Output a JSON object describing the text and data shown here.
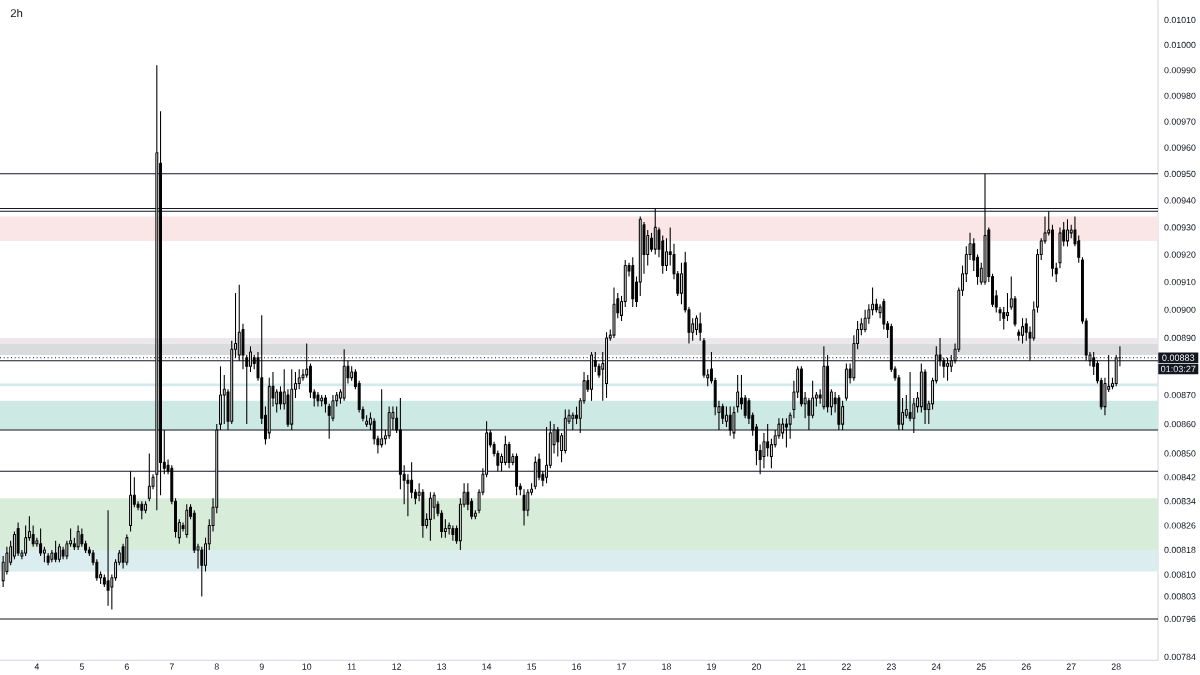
{
  "chart_data": {
    "type": "candlestick",
    "title": "2h",
    "log": true,
    "color": "#000000",
    "xlim": [
      3.18,
      28.93
    ],
    "ylim": [
      0.00783,
      0.01018
    ],
    "xticks": [
      4,
      5,
      6,
      7,
      8,
      9,
      10,
      11,
      12,
      13,
      14,
      15,
      16,
      17,
      18,
      19,
      20,
      21,
      22,
      23,
      24,
      25,
      26,
      27,
      28
    ],
    "yticks": [
      {
        "value": 0.0101,
        "label": "0.01010"
      },
      {
        "value": 0.01,
        "label": "0.01000"
      },
      {
        "value": 0.0099,
        "label": "0.00990"
      },
      {
        "value": 0.0098,
        "label": "0.00980"
      },
      {
        "value": 0.0097,
        "label": "0.00970"
      },
      {
        "value": 0.0096,
        "label": "0.00960"
      },
      {
        "value": 0.0095,
        "label": "0.00950"
      },
      {
        "value": 0.0094,
        "label": "0.00940"
      },
      {
        "value": 0.0093,
        "label": "0.00930"
      },
      {
        "value": 0.0092,
        "label": "0.00920"
      },
      {
        "value": 0.0091,
        "label": "0.00910"
      },
      {
        "value": 0.009,
        "label": "0.00900"
      },
      {
        "value": 0.0089,
        "label": "0.00890"
      },
      {
        "value": 0.0087,
        "label": "0.00870"
      },
      {
        "value": 0.0086,
        "label": "0.00860"
      },
      {
        "value": 0.0085,
        "label": "0.00850"
      },
      {
        "value": 0.00842,
        "label": "0.00842"
      },
      {
        "value": 0.00834,
        "label": "0.00834"
      },
      {
        "value": 0.00826,
        "label": "0.00826"
      },
      {
        "value": 0.00818,
        "label": "0.00818"
      },
      {
        "value": 0.0081,
        "label": "0.00810"
      },
      {
        "value": 0.00803,
        "label": "0.00803"
      },
      {
        "value": 0.00796,
        "label": "0.00796"
      },
      {
        "value": 0.00784,
        "label": "0.00784"
      }
    ],
    "x": [
      3.25,
      3.333,
      3.417,
      3.5,
      3.583,
      3.667,
      3.75,
      3.833,
      3.917,
      4,
      4.083,
      4.167,
      4.25,
      4.333,
      4.417,
      4.5,
      4.583,
      4.667,
      4.75,
      4.833,
      4.917,
      5,
      5.083,
      5.167,
      5.25,
      5.333,
      5.417,
      5.5,
      5.583,
      5.667,
      5.75,
      5.833,
      5.917,
      6,
      6.083,
      6.167,
      6.25,
      6.333,
      6.417,
      6.5,
      6.583,
      6.667,
      6.75,
      6.833,
      6.917,
      7,
      7.083,
      7.167,
      7.25,
      7.333,
      7.417,
      7.5,
      7.583,
      7.667,
      7.75,
      7.833,
      7.917,
      8,
      8.083,
      8.167,
      8.25,
      8.333,
      8.417,
      8.5,
      8.583,
      8.667,
      8.75,
      8.833,
      8.917,
      9,
      9.083,
      9.167,
      9.25,
      9.333,
      9.417,
      9.5,
      9.583,
      9.667,
      9.75,
      9.833,
      9.917,
      10,
      10.083,
      10.167,
      10.25,
      10.333,
      10.417,
      10.5,
      10.583,
      10.667,
      10.75,
      10.833,
      10.917,
      11,
      11.083,
      11.167,
      11.25,
      11.333,
      11.417,
      11.5,
      11.583,
      11.667,
      11.75,
      11.833,
      11.917,
      12,
      12.083,
      12.167,
      12.25,
      12.333,
      12.417,
      12.5,
      12.583,
      12.667,
      12.75,
      12.833,
      12.917,
      13,
      13.083,
      13.167,
      13.25,
      13.333,
      13.417,
      13.5,
      13.583,
      13.667,
      13.75,
      13.833,
      13.917,
      14,
      14.083,
      14.167,
      14.25,
      14.333,
      14.417,
      14.5,
      14.583,
      14.667,
      14.75,
      14.833,
      14.917,
      15,
      15.083,
      15.167,
      15.25,
      15.333,
      15.417,
      15.5,
      15.583,
      15.667,
      15.75,
      15.833,
      15.917,
      16,
      16.083,
      16.167,
      16.25,
      16.333,
      16.417,
      16.5,
      16.583,
      16.667,
      16.75,
      16.833,
      16.917,
      17,
      17.083,
      17.167,
      17.25,
      17.333,
      17.417,
      17.5,
      17.583,
      17.667,
      17.75,
      17.833,
      17.917,
      18,
      18.083,
      18.167,
      18.25,
      18.333,
      18.417,
      18.5,
      18.583,
      18.667,
      18.75,
      18.833,
      18.917,
      19,
      19.083,
      19.167,
      19.25,
      19.333,
      19.417,
      19.5,
      19.583,
      19.667,
      19.75,
      19.833,
      19.917,
      20,
      20.083,
      20.167,
      20.25,
      20.333,
      20.417,
      20.5,
      20.583,
      20.667,
      20.75,
      20.833,
      20.917,
      21,
      21.083,
      21.167,
      21.25,
      21.333,
      21.417,
      21.5,
      21.583,
      21.667,
      21.75,
      21.833,
      21.917,
      22,
      22.083,
      22.167,
      22.25,
      22.333,
      22.417,
      22.5,
      22.583,
      22.667,
      22.75,
      22.833,
      22.917,
      23,
      23.083,
      23.167,
      23.25,
      23.333,
      23.417,
      23.5,
      23.583,
      23.667,
      23.75,
      23.833,
      23.917,
      24,
      24.083,
      24.167,
      24.25,
      24.333,
      24.417,
      24.5,
      24.583,
      24.667,
      24.75,
      24.833,
      24.917,
      25,
      25.083,
      25.167,
      25.25,
      25.333,
      25.417,
      25.5,
      25.583,
      25.667,
      25.75,
      25.833,
      25.917,
      26,
      26.083,
      26.167,
      26.25,
      26.333,
      26.417,
      26.5,
      26.583,
      26.667,
      26.75,
      26.833,
      26.917,
      27,
      27.083,
      27.167,
      27.25,
      27.333,
      27.417,
      27.5,
      27.583,
      27.667,
      27.75,
      27.833,
      27.917,
      28,
      28.083
    ],
    "ohlc": [
      [
        0.00808,
        0.00816,
        0.00806,
        0.00814
      ],
      [
        0.00811,
        0.00819,
        0.0081,
        0.00817
      ],
      [
        0.00814,
        0.00821,
        0.00813,
        0.00819
      ],
      [
        0.00816,
        0.00824,
        0.00815,
        0.00823
      ],
      [
        0.00825,
        0.00827,
        0.00816,
        0.00817
      ],
      [
        0.00816,
        0.00818,
        0.00815,
        0.00817
      ],
      [
        0.00817,
        0.00826,
        0.00816,
        0.00822
      ],
      [
        0.00822,
        0.00829,
        0.00821,
        0.00824
      ],
      [
        0.00823,
        0.00826,
        0.00819,
        0.0082
      ],
      [
        0.0082,
        0.00822,
        0.00819,
        0.00821
      ],
      [
        0.0082,
        0.00825,
        0.00816,
        0.00817
      ],
      [
        0.00817,
        0.00819,
        0.00814,
        0.00818
      ],
      [
        0.00816,
        0.00817,
        0.00813,
        0.00814
      ],
      [
        0.00815,
        0.00818,
        0.00814,
        0.00817
      ],
      [
        0.00817,
        0.00821,
        0.00814,
        0.00815
      ],
      [
        0.00815,
        0.0082,
        0.00814,
        0.00819
      ],
      [
        0.00818,
        0.00819,
        0.00815,
        0.00816
      ],
      [
        0.00816,
        0.00821,
        0.00815,
        0.0082
      ],
      [
        0.0082,
        0.00825,
        0.00819,
        0.00821
      ],
      [
        0.0082,
        0.00822,
        0.00818,
        0.00819
      ],
      [
        0.00819,
        0.00826,
        0.00818,
        0.00824
      ],
      [
        0.00823,
        0.00825,
        0.00819,
        0.0082
      ],
      [
        0.0082,
        0.00821,
        0.00817,
        0.00818
      ],
      [
        0.00818,
        0.00819,
        0.00816,
        0.00817
      ],
      [
        0.00817,
        0.00818,
        0.00813,
        0.00814
      ],
      [
        0.00814,
        0.00815,
        0.00808,
        0.00809
      ],
      [
        0.00809,
        0.00811,
        0.00807,
        0.0081
      ],
      [
        0.00809,
        0.0081,
        0.00806,
        0.00807
      ],
      [
        0.00808,
        0.00831,
        0.008,
        0.00805
      ],
      [
        0.00806,
        0.0081,
        0.00799,
        0.00809
      ],
      [
        0.00809,
        0.00815,
        0.00808,
        0.00814
      ],
      [
        0.00814,
        0.00818,
        0.00813,
        0.00817
      ],
      [
        0.00819,
        0.0082,
        0.00812,
        0.00814
      ],
      [
        0.00814,
        0.00823,
        0.00813,
        0.00822
      ],
      [
        0.00826,
        0.00844,
        0.00824,
        0.00836
      ],
      [
        0.00836,
        0.00842,
        0.00832,
        0.00833
      ],
      [
        0.00833,
        0.00834,
        0.00831,
        0.00832
      ],
      [
        0.00833,
        0.00834,
        0.00828,
        0.00831
      ],
      [
        0.00831,
        0.00834,
        0.0083,
        0.00833
      ],
      [
        0.00835,
        0.0085,
        0.00834,
        0.00839
      ],
      [
        0.00839,
        0.00843,
        0.00838,
        0.00842
      ],
      [
        0.00843,
        0.00992,
        0.00831,
        0.00958
      ],
      [
        0.00954,
        0.00974,
        0.00836,
        0.00847
      ],
      [
        0.00847,
        0.00858,
        0.00843,
        0.00845
      ],
      [
        0.00846,
        0.00848,
        0.00843,
        0.00844
      ],
      [
        0.00845,
        0.00846,
        0.00833,
        0.00834
      ],
      [
        0.00834,
        0.00835,
        0.00822,
        0.00824
      ],
      [
        0.00822,
        0.00828,
        0.0082,
        0.00827
      ],
      [
        0.00826,
        0.00827,
        0.00824,
        0.00825
      ],
      [
        0.00823,
        0.00833,
        0.00822,
        0.00831
      ],
      [
        0.00832,
        0.00833,
        0.00828,
        0.00829
      ],
      [
        0.0083,
        0.00831,
        0.00817,
        0.00818
      ],
      [
        0.00818,
        0.0082,
        0.00812,
        0.00819
      ],
      [
        0.00818,
        0.00819,
        0.00803,
        0.00813
      ],
      [
        0.00813,
        0.00822,
        0.00811,
        0.0082
      ],
      [
        0.0082,
        0.00828,
        0.00818,
        0.00826
      ],
      [
        0.00826,
        0.00835,
        0.00824,
        0.00832
      ],
      [
        0.00832,
        0.0086,
        0.0083,
        0.00858
      ],
      [
        0.0086,
        0.0088,
        0.00858,
        0.0087
      ],
      [
        0.0087,
        0.00877,
        0.0086,
        0.00872
      ],
      [
        0.00871,
        0.00872,
        0.00858,
        0.00861
      ],
      [
        0.00861,
        0.00889,
        0.0086,
        0.00886
      ],
      [
        0.00886,
        0.00906,
        0.00883,
        0.00888
      ],
      [
        0.00884,
        0.00909,
        0.00882,
        0.00892
      ],
      [
        0.00893,
        0.00895,
        0.00879,
        0.00884
      ],
      [
        0.00883,
        0.00884,
        0.0086,
        0.0088
      ],
      [
        0.0088,
        0.00887,
        0.00878,
        0.00885
      ],
      [
        0.00883,
        0.00884,
        0.00879,
        0.00881
      ],
      [
        0.00883,
        0.00885,
        0.00875,
        0.00876
      ],
      [
        0.00876,
        0.00898,
        0.0086,
        0.00862
      ],
      [
        0.00863,
        0.00866,
        0.00853,
        0.00855
      ],
      [
        0.00857,
        0.00876,
        0.00855,
        0.00873
      ],
      [
        0.00873,
        0.00878,
        0.00866,
        0.00869
      ],
      [
        0.00867,
        0.00872,
        0.00864,
        0.00871
      ],
      [
        0.00871,
        0.00873,
        0.00865,
        0.00867
      ],
      [
        0.00867,
        0.00879,
        0.00865,
        0.00871
      ],
      [
        0.0087,
        0.00872,
        0.00859,
        0.0086
      ],
      [
        0.0086,
        0.00879,
        0.00858,
        0.00872
      ],
      [
        0.00872,
        0.00878,
        0.00869,
        0.00874
      ],
      [
        0.00874,
        0.00879,
        0.00872,
        0.00876
      ],
      [
        0.00876,
        0.00879,
        0.00875,
        0.00877
      ],
      [
        0.00877,
        0.00888,
        0.00876,
        0.00879
      ],
      [
        0.0088,
        0.00881,
        0.00869,
        0.00871
      ],
      [
        0.00871,
        0.00872,
        0.00866,
        0.00869
      ],
      [
        0.0087,
        0.00871,
        0.00866,
        0.00868
      ],
      [
        0.00868,
        0.0087,
        0.00866,
        0.00869
      ],
      [
        0.00869,
        0.0087,
        0.00864,
        0.00867
      ],
      [
        0.00866,
        0.00867,
        0.00855,
        0.00863
      ],
      [
        0.00862,
        0.0087,
        0.00861,
        0.00868
      ],
      [
        0.00868,
        0.00871,
        0.00866,
        0.0087
      ],
      [
        0.00869,
        0.00872,
        0.00867,
        0.00871
      ],
      [
        0.00869,
        0.00886,
        0.00868,
        0.0088
      ],
      [
        0.0088,
        0.00882,
        0.00874,
        0.00876
      ],
      [
        0.00876,
        0.0088,
        0.00875,
        0.00878
      ],
      [
        0.00878,
        0.00879,
        0.00872,
        0.00873
      ],
      [
        0.00874,
        0.00875,
        0.00864,
        0.00865
      ],
      [
        0.00865,
        0.00866,
        0.00861,
        0.00862
      ],
      [
        0.0086,
        0.00863,
        0.00859,
        0.00861
      ],
      [
        0.0086,
        0.00864,
        0.00858,
        0.00862
      ],
      [
        0.00861,
        0.00862,
        0.00853,
        0.00855
      ],
      [
        0.00855,
        0.00856,
        0.0085,
        0.00853
      ],
      [
        0.00853,
        0.00872,
        0.00852,
        0.00855
      ],
      [
        0.00855,
        0.00858,
        0.00853,
        0.00856
      ],
      [
        0.00856,
        0.00866,
        0.00855,
        0.00864
      ],
      [
        0.00862,
        0.00866,
        0.00858,
        0.00864
      ],
      [
        0.00862,
        0.00866,
        0.00857,
        0.00858
      ],
      [
        0.00858,
        0.00869,
        0.00838,
        0.00843
      ],
      [
        0.00843,
        0.00846,
        0.00833,
        0.00841
      ],
      [
        0.00841,
        0.00843,
        0.00829,
        0.0084
      ],
      [
        0.00841,
        0.00847,
        0.00835,
        0.00837
      ],
      [
        0.00837,
        0.00838,
        0.00833,
        0.00835
      ],
      [
        0.00836,
        0.0084,
        0.00834,
        0.00837
      ],
      [
        0.00837,
        0.00838,
        0.00822,
        0.00826
      ],
      [
        0.00826,
        0.0083,
        0.00825,
        0.00828
      ],
      [
        0.00828,
        0.00837,
        0.00821,
        0.00835
      ],
      [
        0.00832,
        0.00837,
        0.00828,
        0.00836
      ],
      [
        0.00833,
        0.00834,
        0.00829,
        0.0083
      ],
      [
        0.0083,
        0.00831,
        0.00822,
        0.00824
      ],
      [
        0.00824,
        0.00828,
        0.00822,
        0.00825
      ],
      [
        0.00825,
        0.00827,
        0.00823,
        0.00826
      ],
      [
        0.00825,
        0.00826,
        0.00821,
        0.00823
      ],
      [
        0.00825,
        0.00826,
        0.0082,
        0.00821
      ],
      [
        0.00821,
        0.00835,
        0.00818,
        0.00833
      ],
      [
        0.00833,
        0.0084,
        0.00832,
        0.00837
      ],
      [
        0.00837,
        0.0084,
        0.00831,
        0.00833
      ],
      [
        0.00834,
        0.00835,
        0.00828,
        0.00829
      ],
      [
        0.00829,
        0.00831,
        0.00828,
        0.0083
      ],
      [
        0.00831,
        0.00838,
        0.0083,
        0.00837
      ],
      [
        0.00837,
        0.00845,
        0.00836,
        0.00843
      ],
      [
        0.00843,
        0.00861,
        0.00842,
        0.00857
      ],
      [
        0.00857,
        0.00858,
        0.00852,
        0.00853
      ],
      [
        0.00853,
        0.00854,
        0.00849,
        0.0085
      ],
      [
        0.0085,
        0.00851,
        0.00844,
        0.00846
      ],
      [
        0.00847,
        0.0085,
        0.00844,
        0.00849
      ],
      [
        0.00847,
        0.00856,
        0.00846,
        0.00853
      ],
      [
        0.00853,
        0.00854,
        0.00845,
        0.00847
      ],
      [
        0.00847,
        0.0085,
        0.00846,
        0.00849
      ],
      [
        0.00849,
        0.0085,
        0.00836,
        0.00839
      ],
      [
        0.00839,
        0.0084,
        0.00836,
        0.00838
      ],
      [
        0.00836,
        0.00838,
        0.00826,
        0.00831
      ],
      [
        0.00831,
        0.00838,
        0.00829,
        0.00837
      ],
      [
        0.00837,
        0.0084,
        0.00836,
        0.00838
      ],
      [
        0.00839,
        0.00849,
        0.00838,
        0.00847
      ],
      [
        0.00848,
        0.0085,
        0.00841,
        0.00842
      ],
      [
        0.00843,
        0.00844,
        0.00839,
        0.00841
      ],
      [
        0.00842,
        0.00859,
        0.0084,
        0.00846
      ],
      [
        0.00846,
        0.00861,
        0.00845,
        0.00857
      ],
      [
        0.00853,
        0.0086,
        0.0085,
        0.00858
      ],
      [
        0.00858,
        0.00859,
        0.00849,
        0.00854
      ],
      [
        0.00851,
        0.00857,
        0.00847,
        0.00856
      ],
      [
        0.00851,
        0.00865,
        0.0085,
        0.00862
      ],
      [
        0.00861,
        0.00865,
        0.0086,
        0.00863
      ],
      [
        0.00862,
        0.00864,
        0.00858,
        0.00863
      ],
      [
        0.00863,
        0.00866,
        0.0086,
        0.00862
      ],
      [
        0.00862,
        0.00869,
        0.00857,
        0.00868
      ],
      [
        0.00868,
        0.00878,
        0.00867,
        0.00875
      ],
      [
        0.00875,
        0.00877,
        0.00871,
        0.00872
      ],
      [
        0.00872,
        0.00885,
        0.00868,
        0.00884
      ],
      [
        0.00882,
        0.00885,
        0.00878,
        0.0088
      ],
      [
        0.0088,
        0.00881,
        0.00876,
        0.00877
      ],
      [
        0.00879,
        0.00885,
        0.00868,
        0.00881
      ],
      [
        0.00874,
        0.00892,
        0.00869,
        0.0089
      ],
      [
        0.0089,
        0.00893,
        0.00889,
        0.00891
      ],
      [
        0.00891,
        0.00908,
        0.0089,
        0.00902
      ],
      [
        0.00904,
        0.00906,
        0.00897,
        0.00899
      ],
      [
        0.00898,
        0.00905,
        0.00896,
        0.00903
      ],
      [
        0.00903,
        0.00918,
        0.00901,
        0.00916
      ],
      [
        0.00916,
        0.00917,
        0.00912,
        0.00914
      ],
      [
        0.00916,
        0.00919,
        0.00901,
        0.00904
      ],
      [
        0.0091,
        0.00912,
        0.00901,
        0.00903
      ],
      [
        0.0091,
        0.00934,
        0.00905,
        0.00933
      ],
      [
        0.00931,
        0.00932,
        0.00913,
        0.0092
      ],
      [
        0.0092,
        0.00929,
        0.00916,
        0.00927
      ],
      [
        0.00926,
        0.00928,
        0.00921,
        0.00922
      ],
      [
        0.00922,
        0.00937,
        0.0092,
        0.0093
      ],
      [
        0.00929,
        0.0093,
        0.00919,
        0.00922
      ],
      [
        0.00925,
        0.00927,
        0.00913,
        0.00916
      ],
      [
        0.00916,
        0.00926,
        0.00914,
        0.00921
      ],
      [
        0.00921,
        0.0093,
        0.00916,
        0.0092
      ],
      [
        0.0092,
        0.00924,
        0.00911,
        0.00913
      ],
      [
        0.00913,
        0.00914,
        0.00905,
        0.00906
      ],
      [
        0.00906,
        0.00917,
        0.00902,
        0.00913
      ],
      [
        0.00917,
        0.00921,
        0.00899,
        0.009
      ],
      [
        0.009,
        0.00901,
        0.00888,
        0.00892
      ],
      [
        0.00892,
        0.00897,
        0.00889,
        0.00895
      ],
      [
        0.00893,
        0.00898,
        0.00891,
        0.00897
      ],
      [
        0.00895,
        0.00899,
        0.00889,
        0.00892
      ],
      [
        0.00889,
        0.0089,
        0.00876,
        0.00877
      ],
      [
        0.00876,
        0.00879,
        0.00873,
        0.00877
      ],
      [
        0.00879,
        0.00885,
        0.00874,
        0.00875
      ],
      [
        0.00875,
        0.00876,
        0.00863,
        0.00866
      ],
      [
        0.00864,
        0.00868,
        0.00858,
        0.00866
      ],
      [
        0.00866,
        0.00867,
        0.0086,
        0.00862
      ],
      [
        0.00861,
        0.00866,
        0.00859,
        0.00863
      ],
      [
        0.00863,
        0.00866,
        0.00856,
        0.00858
      ],
      [
        0.00857,
        0.00866,
        0.00855,
        0.00864
      ],
      [
        0.00866,
        0.00877,
        0.00864,
        0.00871
      ],
      [
        0.00869,
        0.00877,
        0.00865,
        0.00867
      ],
      [
        0.00869,
        0.0087,
        0.00862,
        0.00863
      ],
      [
        0.00868,
        0.00869,
        0.0086,
        0.00862
      ],
      [
        0.00863,
        0.00864,
        0.00856,
        0.00858
      ],
      [
        0.00859,
        0.0086,
        0.00846,
        0.00851
      ],
      [
        0.00851,
        0.00853,
        0.00843,
        0.00848
      ],
      [
        0.00849,
        0.00857,
        0.00845,
        0.00854
      ],
      [
        0.00854,
        0.0086,
        0.00849,
        0.00852
      ],
      [
        0.00849,
        0.00855,
        0.00845,
        0.00853
      ],
      [
        0.00853,
        0.00858,
        0.00852,
        0.00856
      ],
      [
        0.00856,
        0.00862,
        0.00855,
        0.0086
      ],
      [
        0.00857,
        0.00862,
        0.00855,
        0.0086
      ],
      [
        0.0086,
        0.00862,
        0.00852,
        0.00859
      ],
      [
        0.0086,
        0.00864,
        0.00855,
        0.00863
      ],
      [
        0.00865,
        0.00875,
        0.00862,
        0.00871
      ],
      [
        0.00871,
        0.0088,
        0.00869,
        0.00879
      ],
      [
        0.00879,
        0.0088,
        0.00866,
        0.00867
      ],
      [
        0.00867,
        0.00871,
        0.00862,
        0.00869
      ],
      [
        0.00868,
        0.00869,
        0.00858,
        0.00863
      ],
      [
        0.00863,
        0.00875,
        0.00862,
        0.00869
      ],
      [
        0.00869,
        0.00871,
        0.00866,
        0.0087
      ],
      [
        0.0087,
        0.00872,
        0.00867,
        0.00869
      ],
      [
        0.00866,
        0.00887,
        0.00865,
        0.0088
      ],
      [
        0.0088,
        0.00884,
        0.00864,
        0.00866
      ],
      [
        0.00866,
        0.00872,
        0.00863,
        0.00871
      ],
      [
        0.00869,
        0.00871,
        0.00864,
        0.00867
      ],
      [
        0.00869,
        0.0087,
        0.00858,
        0.0086
      ],
      [
        0.0086,
        0.00868,
        0.00858,
        0.00866
      ],
      [
        0.00869,
        0.00881,
        0.00868,
        0.00879
      ],
      [
        0.00879,
        0.00881,
        0.00874,
        0.00876
      ],
      [
        0.00876,
        0.00891,
        0.00875,
        0.00888
      ],
      [
        0.00888,
        0.00896,
        0.00886,
        0.00893
      ],
      [
        0.00893,
        0.00897,
        0.00891,
        0.00895
      ],
      [
        0.00893,
        0.009,
        0.00892,
        0.00897
      ],
      [
        0.00897,
        0.00902,
        0.00895,
        0.009
      ],
      [
        0.009,
        0.00908,
        0.00898,
        0.00902
      ],
      [
        0.00902,
        0.00904,
        0.00899,
        0.009
      ],
      [
        0.00899,
        0.00902,
        0.00897,
        0.00901
      ],
      [
        0.00903,
        0.00904,
        0.00893,
        0.00895
      ],
      [
        0.00895,
        0.00896,
        0.0089,
        0.00893
      ],
      [
        0.00894,
        0.00895,
        0.00878,
        0.00879
      ],
      [
        0.00879,
        0.0088,
        0.00875,
        0.00876
      ],
      [
        0.00876,
        0.00877,
        0.00858,
        0.0086
      ],
      [
        0.0086,
        0.00869,
        0.00858,
        0.00864
      ],
      [
        0.00863,
        0.0087,
        0.00862,
        0.00865
      ],
      [
        0.00864,
        0.00878,
        0.00861,
        0.00862
      ],
      [
        0.00862,
        0.00869,
        0.00857,
        0.00867
      ],
      [
        0.00866,
        0.00871,
        0.00864,
        0.00869
      ],
      [
        0.00866,
        0.00881,
        0.00864,
        0.00878
      ],
      [
        0.00878,
        0.00879,
        0.0086,
        0.00865
      ],
      [
        0.00865,
        0.00868,
        0.0086,
        0.00867
      ],
      [
        0.00867,
        0.00876,
        0.00865,
        0.00875
      ],
      [
        0.00875,
        0.00887,
        0.00874,
        0.00884
      ],
      [
        0.00884,
        0.0089,
        0.0088,
        0.00882
      ],
      [
        0.00882,
        0.00883,
        0.00876,
        0.0088
      ],
      [
        0.0088,
        0.00883,
        0.00875,
        0.00881
      ],
      [
        0.0088,
        0.00884,
        0.00878,
        0.00882
      ],
      [
        0.00882,
        0.00888,
        0.00881,
        0.00886
      ],
      [
        0.00886,
        0.00908,
        0.00885,
        0.00907
      ],
      [
        0.00907,
        0.00916,
        0.00905,
        0.00913
      ],
      [
        0.00913,
        0.00923,
        0.0091,
        0.0092
      ],
      [
        0.0092,
        0.00928,
        0.00918,
        0.00924
      ],
      [
        0.00924,
        0.00926,
        0.00914,
        0.00918
      ],
      [
        0.00919,
        0.0092,
        0.00909,
        0.00912
      ],
      [
        0.0091,
        0.00917,
        0.00909,
        0.00915
      ],
      [
        0.0091,
        0.0095,
        0.00909,
        0.00927
      ],
      [
        0.00929,
        0.0093,
        0.0091,
        0.00912
      ],
      [
        0.00912,
        0.00913,
        0.00901,
        0.00902
      ],
      [
        0.00905,
        0.00907,
        0.00899,
        0.00901
      ],
      [
        0.009,
        0.00901,
        0.00896,
        0.00899
      ],
      [
        0.00899,
        0.00901,
        0.00893,
        0.00897
      ],
      [
        0.00898,
        0.00906,
        0.00896,
        0.00899
      ],
      [
        0.00901,
        0.00912,
        0.009,
        0.00904
      ],
      [
        0.00904,
        0.00905,
        0.00894,
        0.00895
      ],
      [
        0.00892,
        0.00893,
        0.00889,
        0.00891
      ],
      [
        0.00891,
        0.00897,
        0.00888,
        0.00894
      ],
      [
        0.00895,
        0.00897,
        0.00889,
        0.00892
      ],
      [
        0.00892,
        0.00894,
        0.00882,
        0.0089
      ],
      [
        0.0089,
        0.00903,
        0.00889,
        0.009
      ],
      [
        0.00901,
        0.00922,
        0.00899,
        0.0092
      ],
      [
        0.0092,
        0.00926,
        0.00918,
        0.00925
      ],
      [
        0.00925,
        0.00934,
        0.00924,
        0.00928
      ],
      [
        0.00928,
        0.00936,
        0.00927,
        0.00929
      ],
      [
        0.00929,
        0.00931,
        0.00912,
        0.00915
      ],
      [
        0.00915,
        0.00917,
        0.0091,
        0.00913
      ],
      [
        0.00917,
        0.0093,
        0.00915,
        0.00928
      ],
      [
        0.00929,
        0.00932,
        0.00923,
        0.00925
      ],
      [
        0.00925,
        0.00933,
        0.00923,
        0.00929
      ],
      [
        0.00928,
        0.00931,
        0.00926,
        0.00929
      ],
      [
        0.00929,
        0.00934,
        0.00923,
        0.00924
      ],
      [
        0.00925,
        0.00927,
        0.00917,
        0.00919
      ],
      [
        0.00918,
        0.00919,
        0.00895,
        0.00896
      ],
      [
        0.00896,
        0.00897,
        0.00882,
        0.00884
      ],
      [
        0.00882,
        0.00885,
        0.0088,
        0.00884
      ],
      [
        0.00883,
        0.00885,
        0.00877,
        0.0088
      ],
      [
        0.00881,
        0.00882,
        0.00874,
        0.00875
      ],
      [
        0.00875,
        0.00876,
        0.00865,
        0.00866
      ],
      [
        0.00866,
        0.00876,
        0.00863,
        0.00874
      ],
      [
        0.00872,
        0.00884,
        0.00871,
        0.00873
      ],
      [
        0.00873,
        0.00876,
        0.00872,
        0.00874
      ],
      [
        0.00874,
        0.00884,
        0.00873,
        0.00883
      ],
      [
        0.00883,
        0.00887,
        0.0088,
        0.00883
      ]
    ],
    "bands": [
      {
        "axis": "y",
        "from": 0.00884,
        "to": 0.00888,
        "color": "#dadbdd"
      },
      {
        "axis": "y",
        "from": 0.00888,
        "to": 0.0089,
        "color": "#ebe7eb"
      },
      {
        "axis": "y",
        "from": 0.00873,
        "to": 0.00874,
        "color": "#d5eaee"
      },
      {
        "axis": "y",
        "from": 0.00858,
        "to": 0.00868,
        "color": "#cde9e3"
      },
      {
        "axis": "y",
        "from": 0.00925,
        "to": 0.00934,
        "color": "#fbe6e7"
      },
      {
        "axis": "y",
        "from": 0.00818,
        "to": 0.00835,
        "color": "#d8edd9"
      },
      {
        "axis": "y",
        "from": 0.00811,
        "to": 0.00818,
        "color": "#dcedf0"
      }
    ],
    "ref_lines": [
      {
        "axis": "y",
        "value": 0.0095,
        "color": "#131722"
      },
      {
        "axis": "y",
        "value": 0.00937,
        "color": "#131722"
      },
      {
        "axis": "y",
        "value": 0.00936,
        "color": "#131722"
      },
      {
        "axis": "y",
        "value": 0.00882,
        "color": "#131722"
      },
      {
        "axis": "y",
        "value": 0.00883,
        "label": "0.00883",
        "color": "#131722",
        "line_style": "dotted"
      },
      {
        "axis": "y",
        "value": 0.00858,
        "color": "#131722"
      },
      {
        "axis": "y",
        "value": 0.00844,
        "color": "#131722"
      },
      {
        "axis": "y",
        "value": 0.00796,
        "color": "#131722"
      }
    ],
    "annotations": [
      "01:03:27"
    ]
  }
}
